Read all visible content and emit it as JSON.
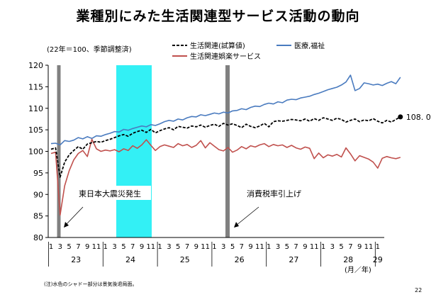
{
  "title": "業種別にみた生活関連型サービス活動の動向",
  "footnote": "(注)水色のシャドー部分は景気後退局面。",
  "page_number": "22",
  "chart_data": {
    "type": "line",
    "ylabel": "(22年＝100、季節調整済)",
    "ylim": [
      80,
      120
    ],
    "yticks": [
      80,
      85,
      90,
      95,
      100,
      105,
      110,
      115,
      120
    ],
    "x_unit": "(月／年)",
    "month_ticks": [
      "1",
      "3",
      "5",
      "7",
      "9",
      "11",
      "1",
      "3",
      "5",
      "7",
      "9",
      "11",
      "1",
      "3",
      "5",
      "7",
      "9",
      "11",
      "1",
      "3",
      "5",
      "7",
      "9",
      "11",
      "1",
      "3",
      "5",
      "7",
      "9",
      "11",
      "1",
      "3",
      "5",
      "7",
      "9",
      "11",
      "1"
    ],
    "years": [
      "23",
      "24",
      "25",
      "26",
      "27",
      "28",
      "29"
    ],
    "legend": [
      {
        "name": "生活関連(試算値)",
        "color": "#000000",
        "dash": true
      },
      {
        "name": "医療,福祉",
        "color": "#4a7bbf",
        "dash": false
      },
      {
        "name": "生活関連娯楽サービス",
        "color": "#c0504d",
        "dash": false
      }
    ],
    "series": [
      {
        "name": "医療,福祉",
        "color": "#4a7bbf",
        "values": [
          101.8,
          101.9,
          101.5,
          102.5,
          102.3,
          102.6,
          103.2,
          102.9,
          103.4,
          103.0,
          103.6,
          103.5,
          103.9,
          104.2,
          104.6,
          104.5,
          105.1,
          104.9,
          105.3,
          105.6,
          105.9,
          105.7,
          106.2,
          106.0,
          106.4,
          106.9,
          107.2,
          107.0,
          107.5,
          107.3,
          107.8,
          108.1,
          108.0,
          108.5,
          108.3,
          108.6,
          108.9,
          108.7,
          109.1,
          108.9,
          109.4,
          109.5,
          109.9,
          109.7,
          110.2,
          110.5,
          110.4,
          110.9,
          111.2,
          111.0,
          111.5,
          111.3,
          111.9,
          112.1,
          112.0,
          112.4,
          112.6,
          112.8,
          113.2,
          113.5,
          113.9,
          114.3,
          114.6,
          114.9,
          115.4,
          116.1,
          117.7,
          114.1,
          114.6,
          115.9,
          115.7,
          115.4,
          115.6,
          115.3,
          115.8,
          116.2,
          115.7,
          117.2
        ]
      },
      {
        "name": "生活関連(試算値)",
        "color": "#000000",
        "values": [
          100.5,
          100.8,
          94.0,
          97.5,
          99.2,
          100.2,
          101.1,
          100.5,
          101.7,
          102.0,
          102.3,
          102.1,
          102.5,
          102.8,
          103.2,
          103.6,
          103.9,
          103.5,
          104.2,
          104.6,
          104.9,
          104.4,
          105.1,
          104.3,
          104.8,
          105.2,
          105.5,
          105.0,
          105.8,
          105.6,
          105.4,
          105.9,
          105.7,
          106.1,
          105.6,
          106.0,
          106.3,
          105.8,
          106.5,
          106.1,
          106.4,
          106.0,
          105.5,
          106.3,
          105.8,
          105.5,
          105.9,
          106.5,
          105.7,
          106.9,
          107.1,
          107.0,
          107.2,
          107.4,
          107.3,
          107.1,
          107.5,
          107.0,
          107.6,
          107.2,
          107.8,
          107.5,
          107.2,
          107.7,
          107.4,
          106.8,
          107.2,
          107.5,
          106.9,
          107.3,
          107.1,
          107.6,
          107.0,
          106.6,
          107.2,
          106.8,
          107.4,
          108.0
        ]
      },
      {
        "name": "生活関連娯楽サービス",
        "color": "#c0504d",
        "values": [
          99.5,
          99.8,
          85.2,
          92.0,
          95.5,
          98.0,
          99.5,
          100.2,
          98.8,
          102.8,
          100.6,
          100.0,
          100.3,
          100.1,
          100.4,
          99.9,
          100.6,
          100.2,
          101.3,
          100.7,
          101.5,
          102.7,
          101.4,
          100.2,
          101.1,
          101.5,
          101.2,
          100.9,
          101.8,
          101.3,
          101.6,
          100.9,
          101.4,
          102.5,
          100.8,
          102.0,
          101.2,
          100.4,
          100.1,
          100.9,
          99.8,
          100.3,
          101.1,
          100.6,
          101.3,
          101.0,
          101.5,
          101.8,
          101.1,
          101.6,
          101.3,
          101.5,
          100.9,
          101.4,
          100.8,
          100.5,
          101.0,
          100.7,
          98.3,
          99.6,
          98.5,
          99.2,
          98.9,
          99.3,
          98.7,
          100.8,
          99.4,
          97.8,
          99.0,
          98.6,
          98.2,
          97.5,
          96.1,
          98.4,
          98.8,
          98.5,
          98.3,
          98.6
        ]
      }
    ],
    "end_label": "108. 0",
    "annotations": [
      "東日本大震災発生",
      "消費税率引上げ"
    ]
  }
}
